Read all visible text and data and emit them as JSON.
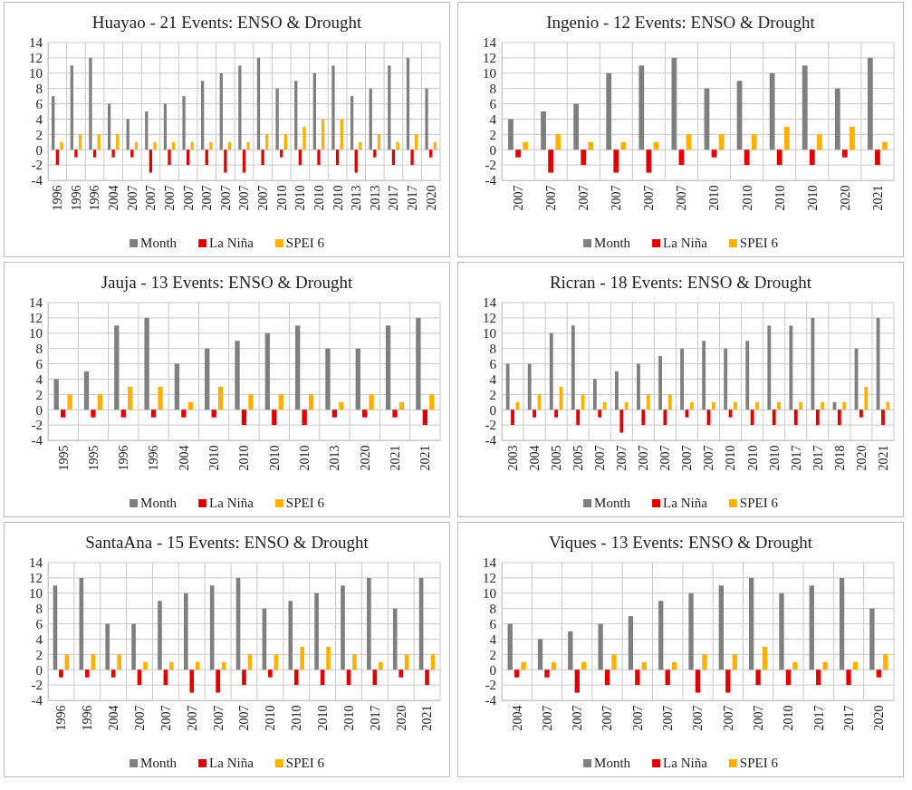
{
  "chart_data": [
    {
      "type": "bar",
      "title": "Huayao - 21 Events: ENSO & Drought",
      "categories": [
        "1996",
        "1996",
        "1996",
        "2004",
        "2007",
        "2007",
        "2007",
        "2007",
        "2007",
        "2007",
        "2007",
        "2007",
        "2010",
        "2010",
        "2010",
        "2010",
        "2013",
        "2013",
        "2017",
        "2017",
        "2020"
      ],
      "series": [
        {
          "name": "Month",
          "color": "#7f7f7f",
          "values": [
            7,
            11,
            12,
            6,
            4,
            5,
            6,
            7,
            9,
            10,
            11,
            12,
            8,
            9,
            10,
            11,
            7,
            8,
            11,
            12,
            8
          ]
        },
        {
          "name": "La Niña",
          "color": "#e00000",
          "values": [
            -2,
            -1,
            -1,
            -1,
            -1,
            -3,
            -2,
            -2,
            -2,
            -3,
            -3,
            -2,
            -1,
            -2,
            -2,
            -2,
            -3,
            -1,
            -2,
            -2,
            -1
          ]
        },
        {
          "name": "SPEI 6",
          "color": "#ffb000",
          "values": [
            1,
            2,
            2,
            2,
            1,
            1,
            1,
            1,
            1,
            1,
            1,
            2,
            2,
            3,
            4,
            4,
            1,
            2,
            1,
            2,
            1
          ]
        }
      ],
      "ylim": [
        -4,
        14
      ],
      "yticks": [
        -4,
        -2,
        0,
        2,
        4,
        6,
        8,
        10,
        12,
        14
      ],
      "grid": true,
      "legend": "bottom"
    },
    {
      "type": "bar",
      "title": "Ingenio - 12 Events: ENSO & Drought",
      "categories": [
        "2007",
        "2007",
        "2007",
        "2007",
        "2007",
        "2007",
        "2010",
        "2010",
        "2010",
        "2010",
        "2020",
        "2021"
      ],
      "series": [
        {
          "name": "Month",
          "color": "#7f7f7f",
          "values": [
            4,
            5,
            6,
            10,
            11,
            12,
            8,
            9,
            10,
            11,
            8,
            12
          ]
        },
        {
          "name": "La Niña",
          "color": "#e00000",
          "values": [
            -1,
            -3,
            -2,
            -3,
            -3,
            -2,
            -1,
            -2,
            -2,
            -2,
            -1,
            -2
          ]
        },
        {
          "name": "SPEI 6",
          "color": "#ffb000",
          "values": [
            1,
            2,
            1,
            1,
            1,
            2,
            2,
            2,
            3,
            2,
            3,
            1
          ]
        }
      ],
      "ylim": [
        -4,
        14
      ],
      "yticks": [
        -4,
        -2,
        0,
        2,
        4,
        6,
        8,
        10,
        12,
        14
      ],
      "grid": true,
      "legend": "bottom"
    },
    {
      "type": "bar",
      "title": "Jauja - 13 Events: ENSO & Drought",
      "categories": [
        "1995",
        "1995",
        "1996",
        "1996",
        "2004",
        "2010",
        "2010",
        "2010",
        "2010",
        "2013",
        "2020",
        "2021",
        "2021"
      ],
      "series": [
        {
          "name": "Month",
          "color": "#7f7f7f",
          "values": [
            4,
            5,
            11,
            12,
            6,
            8,
            9,
            10,
            11,
            8,
            8,
            11,
            12
          ]
        },
        {
          "name": "La Niña",
          "color": "#e00000",
          "values": [
            -1,
            -1,
            -1,
            -1,
            -1,
            -1,
            -2,
            -2,
            -2,
            -1,
            -1,
            -1,
            -2
          ]
        },
        {
          "name": "SPEI 6",
          "color": "#ffb000",
          "values": [
            2,
            2,
            3,
            3,
            1,
            3,
            2,
            2,
            2,
            1,
            2,
            1,
            2
          ]
        }
      ],
      "ylim": [
        -4,
        14
      ],
      "yticks": [
        -4,
        -2,
        0,
        2,
        4,
        6,
        8,
        10,
        12,
        14
      ],
      "grid": true,
      "legend": "bottom"
    },
    {
      "type": "bar",
      "title": "Ricran - 18 Events: ENSO & Drought",
      "categories": [
        "2003",
        "2004",
        "2005",
        "2005",
        "2007",
        "2007",
        "2007",
        "2007",
        "2007",
        "2007",
        "2010",
        "2010",
        "2010",
        "2017",
        "2017",
        "2018",
        "2020",
        "2021"
      ],
      "series": [
        {
          "name": "Month",
          "color": "#7f7f7f",
          "values": [
            6,
            6,
            10,
            11,
            4,
            5,
            6,
            7,
            8,
            9,
            8,
            9,
            11,
            11,
            12,
            1,
            8,
            12
          ]
        },
        {
          "name": "La Niña",
          "color": "#e00000",
          "values": [
            -2,
            -1,
            -1,
            -2,
            -1,
            -3,
            -2,
            -2,
            -1,
            -2,
            -1,
            -2,
            -2,
            -2,
            -2,
            -2,
            -1,
            -2
          ]
        },
        {
          "name": "SPEI 6",
          "color": "#ffb000",
          "values": [
            1,
            2,
            3,
            2,
            1,
            1,
            2,
            2,
            1,
            1,
            1,
            1,
            1,
            1,
            1,
            1,
            3,
            1
          ]
        }
      ],
      "ylim": [
        -4,
        14
      ],
      "yticks": [
        -4,
        -2,
        0,
        2,
        4,
        6,
        8,
        10,
        12,
        14
      ],
      "grid": true,
      "legend": "bottom"
    },
    {
      "type": "bar",
      "title": "SantaAna - 15 Events: ENSO & Drought",
      "categories": [
        "1996",
        "1996",
        "2004",
        "2007",
        "2007",
        "2007",
        "2007",
        "2007",
        "2010",
        "2010",
        "2010",
        "2010",
        "2017",
        "2020",
        "2021"
      ],
      "series": [
        {
          "name": "Month",
          "color": "#7f7f7f",
          "values": [
            11,
            12,
            6,
            6,
            9,
            10,
            11,
            12,
            8,
            9,
            10,
            11,
            12,
            8,
            12
          ]
        },
        {
          "name": "La Niña",
          "color": "#e00000",
          "values": [
            -1,
            -1,
            -1,
            -2,
            -2,
            -3,
            -3,
            -2,
            -1,
            -2,
            -2,
            -2,
            -2,
            -1,
            -2
          ]
        },
        {
          "name": "SPEI 6",
          "color": "#ffb000",
          "values": [
            2,
            2,
            2,
            1,
            1,
            1,
            1,
            2,
            2,
            3,
            3,
            2,
            1,
            2,
            2
          ]
        }
      ],
      "ylim": [
        -4,
        14
      ],
      "yticks": [
        -4,
        -2,
        0,
        2,
        4,
        6,
        8,
        10,
        12,
        14
      ],
      "grid": true,
      "legend": "bottom"
    },
    {
      "type": "bar",
      "title": "Viques - 13 Events: ENSO & Drought",
      "categories": [
        "2004",
        "2007",
        "2007",
        "2007",
        "2007",
        "2007",
        "2007",
        "2007",
        "2007",
        "2010",
        "2017",
        "2017",
        "2020"
      ],
      "series": [
        {
          "name": "Month",
          "color": "#7f7f7f",
          "values": [
            6,
            4,
            5,
            6,
            7,
            9,
            10,
            11,
            12,
            10,
            11,
            12,
            8
          ]
        },
        {
          "name": "La Niña",
          "color": "#e00000",
          "values": [
            -1,
            -1,
            -3,
            -2,
            -2,
            -2,
            -3,
            -3,
            -2,
            -2,
            -2,
            -2,
            -1
          ]
        },
        {
          "name": "SPEI 6",
          "color": "#ffb000",
          "values": [
            1,
            1,
            1,
            2,
            1,
            1,
            2,
            2,
            3,
            1,
            1,
            1,
            2
          ]
        }
      ],
      "ylim": [
        -4,
        14
      ],
      "yticks": [
        -4,
        -2,
        0,
        2,
        4,
        6,
        8,
        10,
        12,
        14
      ],
      "grid": true,
      "legend": "bottom"
    }
  ]
}
